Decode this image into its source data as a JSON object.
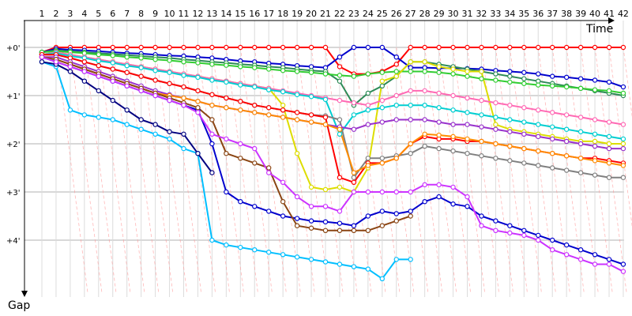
{
  "chart_data": {
    "type": "line",
    "title": "",
    "xlabel": "Time",
    "ylabel": "Gap",
    "x": [
      1,
      2,
      3,
      4,
      5,
      6,
      7,
      8,
      9,
      10,
      11,
      12,
      13,
      14,
      15,
      16,
      17,
      18,
      19,
      20,
      21,
      22,
      23,
      24,
      25,
      26,
      27,
      28,
      29,
      30,
      31,
      32,
      33,
      34,
      35,
      36,
      37,
      38,
      39,
      40,
      41,
      42
    ],
    "x_tick_labels": [
      "1",
      "2",
      "3",
      "4",
      "5",
      "6",
      "7",
      "8",
      "9",
      "10",
      "11",
      "12",
      "13",
      "14",
      "15",
      "16",
      "17",
      "18",
      "19",
      "20",
      "21",
      "22",
      "23",
      "24",
      "25",
      "26",
      "27",
      "28",
      "29",
      "30",
      "31",
      "32",
      "33",
      "34",
      "35",
      "36",
      "37",
      "38",
      "39",
      "40",
      "41",
      "42"
    ],
    "y_tick_labels": [
      "+0'",
      "+1'",
      "+2'",
      "+3'",
      "+4'"
    ],
    "y_ticks": [
      0,
      1,
      2,
      3,
      4
    ],
    "ylim": [
      0,
      4.9
    ],
    "grid": true,
    "y_axis_inverted": true,
    "series": [
      {
        "color": "#ff0000",
        "values": [
          0.1,
          0,
          0,
          0,
          0,
          0,
          0,
          0,
          0,
          0,
          0,
          0,
          0,
          0,
          0,
          0,
          0,
          0,
          0,
          0,
          0,
          0.4,
          0.55,
          0.55,
          0.5,
          0.35,
          0,
          0,
          0,
          0,
          0,
          0,
          0,
          0,
          0,
          0,
          0,
          0,
          0,
          0,
          0,
          0
        ]
      },
      {
        "color": "#0000cc",
        "values": [
          0.1,
          0.03,
          0.05,
          0.06,
          0.08,
          0.1,
          0.12,
          0.13,
          0.15,
          0.17,
          0.18,
          0.2,
          0.22,
          0.25,
          0.28,
          0.3,
          0.33,
          0.35,
          0.38,
          0.4,
          0.42,
          0.2,
          0,
          0,
          0,
          0.2,
          0.42,
          0.42,
          0.43,
          0.43,
          0.44,
          0.45,
          0.48,
          0.5,
          0.52,
          0.55,
          0.6,
          0.62,
          0.65,
          0.68,
          0.72,
          0.82
        ]
      },
      {
        "color": "#2e8b57",
        "values": [
          0.1,
          0.06,
          0.08,
          0.1,
          0.12,
          0.14,
          0.16,
          0.18,
          0.2,
          0.22,
          0.25,
          0.27,
          0.3,
          0.32,
          0.35,
          0.37,
          0.4,
          0.42,
          0.45,
          0.48,
          0.5,
          0.7,
          1.2,
          0.95,
          0.8,
          0.6,
          0.3,
          0.3,
          0.35,
          0.4,
          0.45,
          0.5,
          0.55,
          0.6,
          0.65,
          0.7,
          0.75,
          0.8,
          0.85,
          0.9,
          0.95,
          1.0
        ]
      },
      {
        "color": "#32cd32",
        "values": [
          0.1,
          0.08,
          0.1,
          0.12,
          0.15,
          0.17,
          0.2,
          0.22,
          0.25,
          0.27,
          0.3,
          0.32,
          0.35,
          0.37,
          0.4,
          0.42,
          0.45,
          0.48,
          0.5,
          0.52,
          0.55,
          0.58,
          0.6,
          0.55,
          0.52,
          0.5,
          0.5,
          0.5,
          0.52,
          0.55,
          0.6,
          0.65,
          0.68,
          0.72,
          0.75,
          0.78,
          0.8,
          0.82,
          0.85,
          0.88,
          0.9,
          0.95
        ]
      },
      {
        "color": "#dddd00",
        "values": [
          0.15,
          0.1,
          0.15,
          0.2,
          0.25,
          0.3,
          0.35,
          0.4,
          0.45,
          0.5,
          0.55,
          0.6,
          0.65,
          0.7,
          0.75,
          0.8,
          0.85,
          1.2,
          2.2,
          2.9,
          2.95,
          2.9,
          3.0,
          2.5,
          0.7,
          0.6,
          0.3,
          0.3,
          0.4,
          0.45,
          0.5,
          0.5,
          1.6,
          1.7,
          1.75,
          1.8,
          1.85,
          1.9,
          1.95,
          1.95,
          2.0,
          2.0
        ]
      },
      {
        "color": "#ff69b4",
        "values": [
          0.15,
          0.1,
          0.15,
          0.2,
          0.25,
          0.3,
          0.35,
          0.4,
          0.45,
          0.5,
          0.55,
          0.6,
          0.65,
          0.7,
          0.75,
          0.8,
          0.85,
          0.9,
          0.95,
          1.0,
          1.05,
          1.1,
          1.15,
          1.2,
          1.1,
          1.0,
          0.9,
          0.9,
          0.95,
          1.0,
          1.05,
          1.1,
          1.15,
          1.2,
          1.25,
          1.3,
          1.35,
          1.4,
          1.45,
          1.5,
          1.55,
          1.6
        ]
      },
      {
        "color": "#00ced1",
        "values": [
          0.15,
          0.12,
          0.18,
          0.22,
          0.28,
          0.32,
          0.38,
          0.42,
          0.48,
          0.52,
          0.58,
          0.62,
          0.68,
          0.72,
          0.78,
          0.82,
          0.88,
          0.92,
          0.98,
          1.02,
          1.08,
          1.8,
          1.4,
          1.3,
          1.25,
          1.2,
          1.2,
          1.2,
          1.25,
          1.3,
          1.35,
          1.4,
          1.45,
          1.5,
          1.55,
          1.6,
          1.65,
          1.7,
          1.75,
          1.8,
          1.85,
          1.9
        ]
      },
      {
        "color": "#808080",
        "values": [
          0.15,
          0.15,
          0.22,
          0.3,
          0.38,
          0.45,
          0.52,
          0.6,
          0.68,
          0.75,
          0.82,
          0.9,
          0.98,
          1.05,
          1.12,
          1.2,
          1.25,
          1.3,
          1.35,
          1.4,
          1.42,
          1.5,
          2.7,
          2.3,
          2.3,
          2.25,
          2.2,
          2.05,
          2.1,
          2.15,
          2.2,
          2.25,
          2.3,
          2.35,
          2.4,
          2.45,
          2.5,
          2.55,
          2.6,
          2.65,
          2.7,
          2.7
        ]
      },
      {
        "color": "#ff0000",
        "values": [
          0.15,
          0.15,
          0.22,
          0.3,
          0.38,
          0.45,
          0.52,
          0.6,
          0.68,
          0.75,
          0.82,
          0.9,
          0.98,
          1.05,
          1.12,
          1.2,
          1.25,
          1.3,
          1.35,
          1.4,
          1.45,
          2.7,
          2.8,
          2.4,
          2.4,
          2.3,
          2.0,
          1.85,
          1.9,
          1.9,
          1.95,
          1.95,
          2.0,
          2.05,
          2.1,
          2.15,
          2.2,
          2.25,
          2.3,
          2.3,
          2.35,
          2.4
        ]
      },
      {
        "color": "#9932cc",
        "values": [
          0.2,
          0.2,
          0.3,
          0.4,
          0.5,
          0.6,
          0.7,
          0.8,
          0.9,
          0.98,
          1.05,
          1.12,
          1.2,
          1.25,
          1.3,
          1.35,
          1.4,
          1.45,
          1.5,
          1.55,
          1.6,
          1.65,
          1.7,
          1.6,
          1.55,
          1.5,
          1.5,
          1.5,
          1.55,
          1.6,
          1.6,
          1.65,
          1.7,
          1.75,
          1.8,
          1.85,
          1.9,
          1.95,
          2.0,
          2.05,
          2.1,
          2.1
        ]
      },
      {
        "color": "#ff8c00",
        "values": [
          0.2,
          0.25,
          0.35,
          0.45,
          0.55,
          0.65,
          0.75,
          0.85,
          0.95,
          1.0,
          1.05,
          1.12,
          1.2,
          1.25,
          1.3,
          1.35,
          1.4,
          1.45,
          1.5,
          1.55,
          1.6,
          1.7,
          2.6,
          2.45,
          2.4,
          2.3,
          2.0,
          1.8,
          1.82,
          1.85,
          1.9,
          1.95,
          2.0,
          2.05,
          2.1,
          2.15,
          2.2,
          2.25,
          2.3,
          2.35,
          2.4,
          2.45
        ]
      },
      {
        "color": "#00bfff",
        "values": [
          0.3,
          0.4,
          1.3,
          1.4,
          1.45,
          1.5,
          1.6,
          1.7,
          1.8,
          1.9,
          2.1,
          2.2,
          4.0,
          4.1,
          4.15,
          4.2,
          4.25,
          4.3,
          4.35,
          4.4,
          4.45,
          4.5,
          4.55,
          4.6,
          4.8,
          4.4,
          4.4,
          null,
          null,
          null,
          null,
          null,
          null,
          null,
          null,
          null,
          null,
          null,
          null,
          null,
          null,
          null
        ]
      },
      {
        "color": "#000080",
        "values": [
          0.3,
          0.35,
          0.5,
          0.7,
          0.9,
          1.1,
          1.3,
          1.5,
          1.6,
          1.75,
          1.8,
          2.2,
          2.6,
          null,
          null,
          null,
          null,
          null,
          null,
          null,
          null,
          null,
          null,
          null,
          null,
          null,
          null,
          null,
          null,
          null,
          null,
          null,
          null,
          null,
          null,
          null,
          null,
          null,
          null,
          null,
          null,
          null
        ]
      },
      {
        "color": "#0000cd",
        "values": [
          0.2,
          0.3,
          0.4,
          0.5,
          0.6,
          0.7,
          0.8,
          0.9,
          1.0,
          1.1,
          1.2,
          1.3,
          2.0,
          3.0,
          3.2,
          3.3,
          3.4,
          3.5,
          3.55,
          3.6,
          3.62,
          3.65,
          3.7,
          3.5,
          3.4,
          3.45,
          3.4,
          3.2,
          3.1,
          3.25,
          3.3,
          3.5,
          3.6,
          3.7,
          3.8,
          3.9,
          4.0,
          4.1,
          4.2,
          4.3,
          4.4,
          4.5
        ]
      },
      {
        "color": "#8b4513",
        "values": [
          0.2,
          0.25,
          0.35,
          0.45,
          0.55,
          0.65,
          0.75,
          0.85,
          0.95,
          1.05,
          1.15,
          1.25,
          1.5,
          2.2,
          2.3,
          2.4,
          2.5,
          3.2,
          3.7,
          3.75,
          3.8,
          3.8,
          3.8,
          3.8,
          3.7,
          3.6,
          3.5,
          null,
          null,
          null,
          null,
          null,
          null,
          null,
          null,
          null,
          null,
          null,
          null,
          null,
          null,
          null
        ]
      },
      {
        "color": "#cc33ff",
        "values": [
          0.2,
          0.3,
          0.4,
          0.5,
          0.6,
          0.7,
          0.8,
          0.9,
          1.0,
          1.1,
          1.2,
          1.35,
          1.8,
          1.9,
          2.0,
          2.1,
          2.6,
          2.8,
          3.1,
          3.3,
          3.3,
          3.4,
          3.0,
          3.0,
          3.0,
          3.0,
          3.0,
          2.85,
          2.85,
          2.9,
          3.1,
          3.7,
          3.8,
          3.85,
          3.9,
          4.0,
          4.2,
          4.3,
          4.4,
          4.5,
          4.5,
          4.65
        ]
      }
    ]
  }
}
